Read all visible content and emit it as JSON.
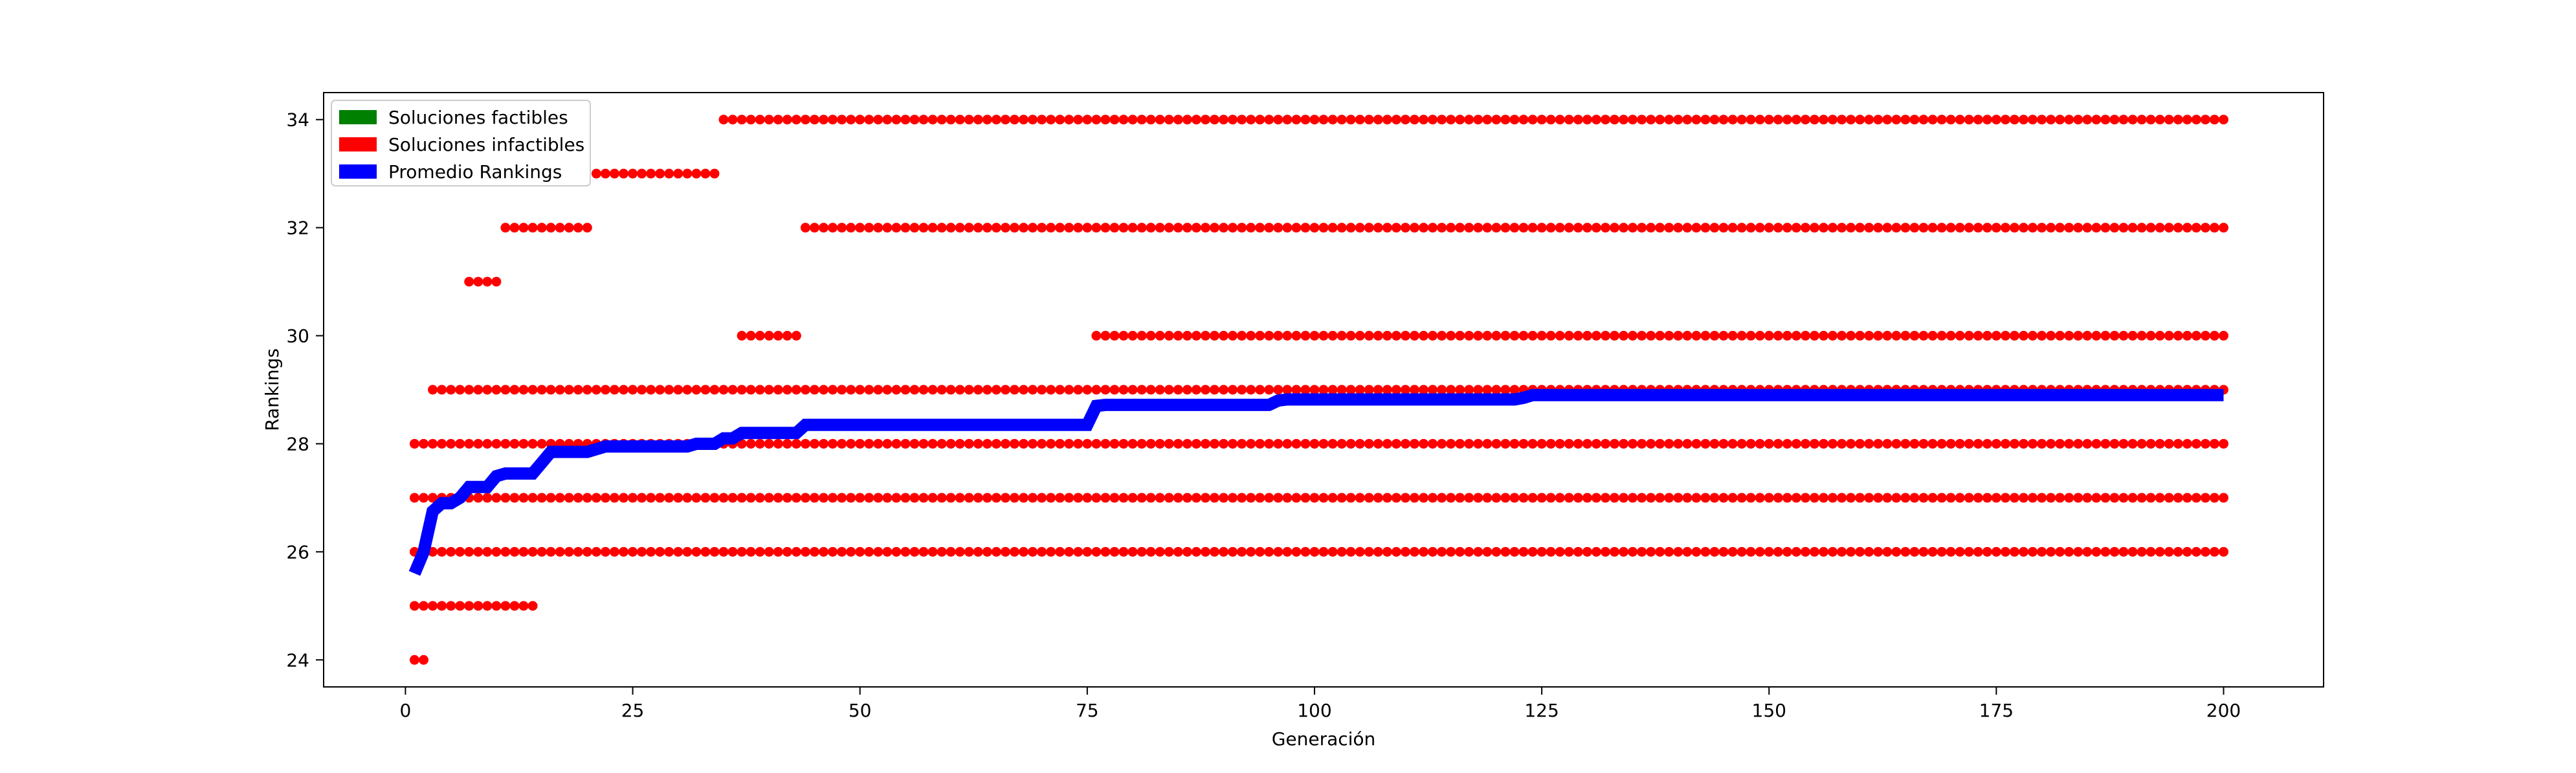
{
  "chart_data": {
    "type": "scatter",
    "title": "",
    "xlabel": "Generación",
    "ylabel": "Rankings",
    "xlim": [
      -9,
      211
    ],
    "ylim": [
      23.5,
      34.5
    ],
    "x_ticks": [
      0,
      25,
      50,
      75,
      100,
      125,
      150,
      175,
      200
    ],
    "x_tick_labels": [
      "0",
      "25",
      "50",
      "75",
      "100",
      "125",
      "150",
      "175",
      "200"
    ],
    "y_ticks": [
      24,
      26,
      28,
      30,
      32,
      34
    ],
    "y_tick_labels": [
      "24",
      "26",
      "28",
      "30",
      "32",
      "34"
    ],
    "grid": false,
    "legend_position": "top-left",
    "legend": [
      {
        "label": "Soluciones factibles",
        "color": "#008000"
      },
      {
        "label": "Soluciones infactibles",
        "color": "#ff0000"
      },
      {
        "label": "Promedio Rankings",
        "color": "#0000ff"
      }
    ],
    "series": [
      {
        "name": "Soluciones factibles",
        "kind": "points",
        "color": "#008000",
        "runs": []
      },
      {
        "name": "Soluciones infactibles",
        "kind": "points",
        "color": "#ff0000",
        "runs": [
          {
            "y": 24,
            "x_from": 1,
            "x_to": 2
          },
          {
            "y": 25,
            "x_from": 1,
            "x_to": 14
          },
          {
            "y": 26,
            "x_from": 1,
            "x_to": 200
          },
          {
            "y": 27,
            "x_from": 1,
            "x_to": 200
          },
          {
            "y": 28,
            "x_from": 1,
            "x_to": 200
          },
          {
            "y": 29,
            "x_from": 3,
            "x_to": 200
          },
          {
            "y": 30,
            "x_from": 37,
            "x_to": 43
          },
          {
            "y": 30,
            "x_from": 76,
            "x_to": 200
          },
          {
            "y": 31,
            "x_from": 7,
            "x_to": 10
          },
          {
            "y": 32,
            "x_from": 11,
            "x_to": 20
          },
          {
            "y": 32,
            "x_from": 44,
            "x_to": 200
          },
          {
            "y": 33,
            "x_from": 21,
            "x_to": 34
          },
          {
            "y": 34,
            "x_from": 35,
            "x_to": 200
          }
        ]
      },
      {
        "name": "Promedio Rankings",
        "kind": "line",
        "color": "#0000ff",
        "x": [
          1,
          2,
          3,
          4,
          5,
          6,
          7,
          8,
          9,
          10,
          11,
          12,
          13,
          14,
          15,
          16,
          17,
          18,
          19,
          20,
          21,
          22,
          30,
          31,
          32,
          33,
          34,
          35,
          36,
          37,
          38,
          43,
          44,
          45,
          75,
          76,
          77,
          95,
          96,
          97,
          122,
          123,
          124,
          200
        ],
        "y": [
          25.6,
          26.0,
          26.75,
          26.9,
          26.9,
          27.0,
          27.2,
          27.2,
          27.2,
          27.4,
          27.45,
          27.45,
          27.45,
          27.45,
          27.65,
          27.85,
          27.85,
          27.85,
          27.85,
          27.85,
          27.9,
          27.95,
          27.95,
          27.95,
          28.0,
          28.0,
          28.0,
          28.1,
          28.1,
          28.2,
          28.2,
          28.2,
          28.35,
          28.35,
          28.35,
          28.7,
          28.72,
          28.72,
          28.8,
          28.82,
          28.82,
          28.85,
          28.9,
          28.9
        ]
      }
    ]
  }
}
